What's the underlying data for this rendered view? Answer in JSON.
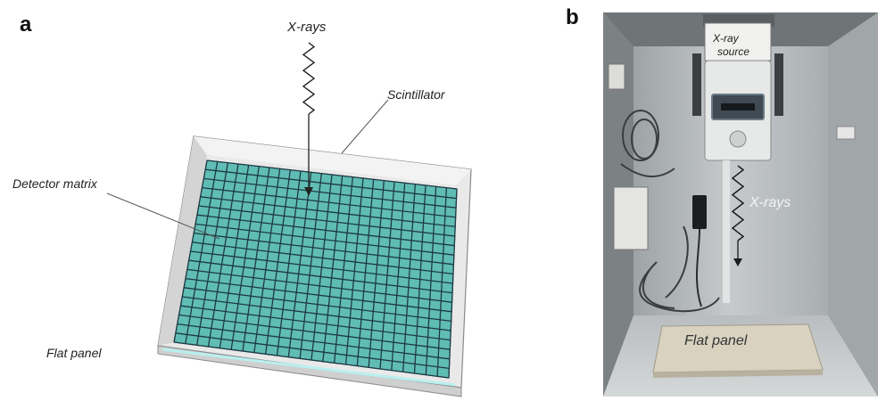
{
  "panel_a": {
    "letter": "a",
    "labels": {
      "xrays": "X-rays",
      "scintillator": "Scintillator",
      "detector_matrix": "Detector matrix",
      "flat_panel": "Flat panel"
    },
    "colors": {
      "matrix_fill": "#5fbdb5",
      "grid_line": "#1e3a44",
      "panel_frame": "#e9e9e9",
      "panel_edge": "#8a8a8a"
    }
  },
  "panel_b": {
    "letter": "b",
    "labels": {
      "xray_source_line1": "X-ray",
      "xray_source_line2": "source",
      "xrays": "X-rays",
      "flat_panel": "Flat panel"
    },
    "colors": {
      "cabinet": "#b7bcbf",
      "flat_panel": "#d9d2c0"
    }
  }
}
